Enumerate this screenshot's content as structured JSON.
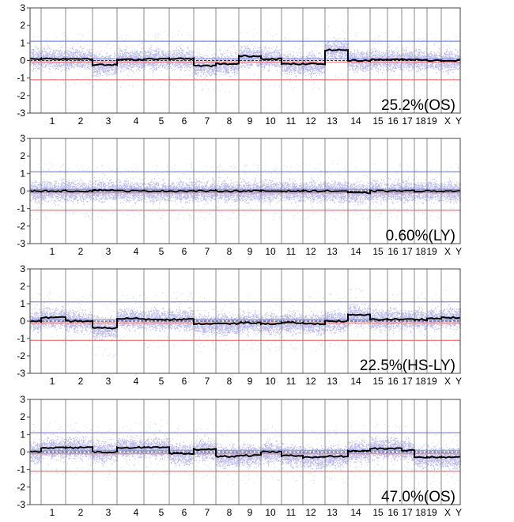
{
  "chart_data": [
    {
      "type": "line",
      "label": "25.2%(OS)",
      "ylim": [
        -3,
        3
      ],
      "yticks": [
        3,
        2,
        1,
        0,
        -1,
        -2,
        -3
      ],
      "categories": [
        "1",
        "2",
        "3",
        "4",
        "5",
        "6",
        "7",
        "8",
        "9",
        "10",
        "11",
        "12",
        "13",
        "14",
        "15",
        "16",
        "17",
        "18",
        "19",
        "X",
        "Y"
      ],
      "threshold_upper": 1.1,
      "threshold_lower": -1.1,
      "segment_values": [
        0.1,
        0.1,
        0.1,
        -0.25,
        0.05,
        0.1,
        0.1,
        -0.3,
        -0.2,
        0.25,
        0.1,
        -0.2,
        -0.2,
        0.6,
        0.0,
        0.05,
        0.05,
        0.05,
        0.05,
        0.0,
        0.0
      ]
    },
    {
      "type": "line",
      "label": "0.60%(LY)",
      "ylim": [
        -3,
        3
      ],
      "yticks": [
        3,
        2,
        1,
        0,
        -1,
        -2,
        -3
      ],
      "categories": [
        "1",
        "2",
        "3",
        "4",
        "5",
        "6",
        "7",
        "8",
        "9",
        "10",
        "11",
        "12",
        "13",
        "14",
        "15",
        "16",
        "17",
        "18",
        "19",
        "X",
        "Y"
      ],
      "threshold_upper": 1.1,
      "threshold_lower": -1.1,
      "segment_values": [
        0.0,
        0.0,
        0.0,
        0.05,
        0.0,
        0.0,
        0.0,
        0.0,
        0.0,
        0.0,
        0.0,
        0.0,
        0.0,
        0.0,
        -0.1,
        0.0,
        0.0,
        0.0,
        0.0,
        0.0,
        0.0
      ]
    },
    {
      "type": "line",
      "label": "22.5%(HS-LY)",
      "ylim": [
        -3,
        3
      ],
      "yticks": [
        3,
        2,
        1,
        0,
        -1,
        -2,
        -3
      ],
      "categories": [
        "1",
        "2",
        "3",
        "4",
        "5",
        "6",
        "7",
        "8",
        "9",
        "10",
        "11",
        "12",
        "13",
        "14",
        "15",
        "16",
        "17",
        "18",
        "19",
        "X",
        "Y"
      ],
      "threshold_upper": 1.1,
      "threshold_lower": -1.1,
      "segment_values": [
        0.0,
        0.2,
        0.0,
        -0.4,
        0.15,
        0.1,
        0.1,
        -0.15,
        -0.15,
        -0.1,
        -0.15,
        -0.1,
        -0.15,
        0.0,
        0.35,
        0.1,
        0.1,
        0.1,
        0.1,
        0.15,
        0.2
      ]
    },
    {
      "type": "line",
      "label": "47.0%(OS)",
      "ylim": [
        -3,
        3
      ],
      "yticks": [
        3,
        2,
        1,
        0,
        -1,
        -2,
        -3
      ],
      "categories": [
        "1",
        "2",
        "3",
        "4",
        "5",
        "6",
        "7",
        "8",
        "9",
        "10",
        "11",
        "12",
        "13",
        "14",
        "15",
        "16",
        "17",
        "18",
        "19",
        "X",
        "Y"
      ],
      "threshold_upper": 1.1,
      "threshold_lower": -1.1,
      "segment_values": [
        0.0,
        0.25,
        0.25,
        0.0,
        0.25,
        0.25,
        -0.1,
        0.15,
        -0.25,
        -0.2,
        0.0,
        -0.2,
        -0.3,
        -0.25,
        0.05,
        0.2,
        0.2,
        0.1,
        -0.3,
        -0.3,
        -0.3
      ]
    }
  ]
}
